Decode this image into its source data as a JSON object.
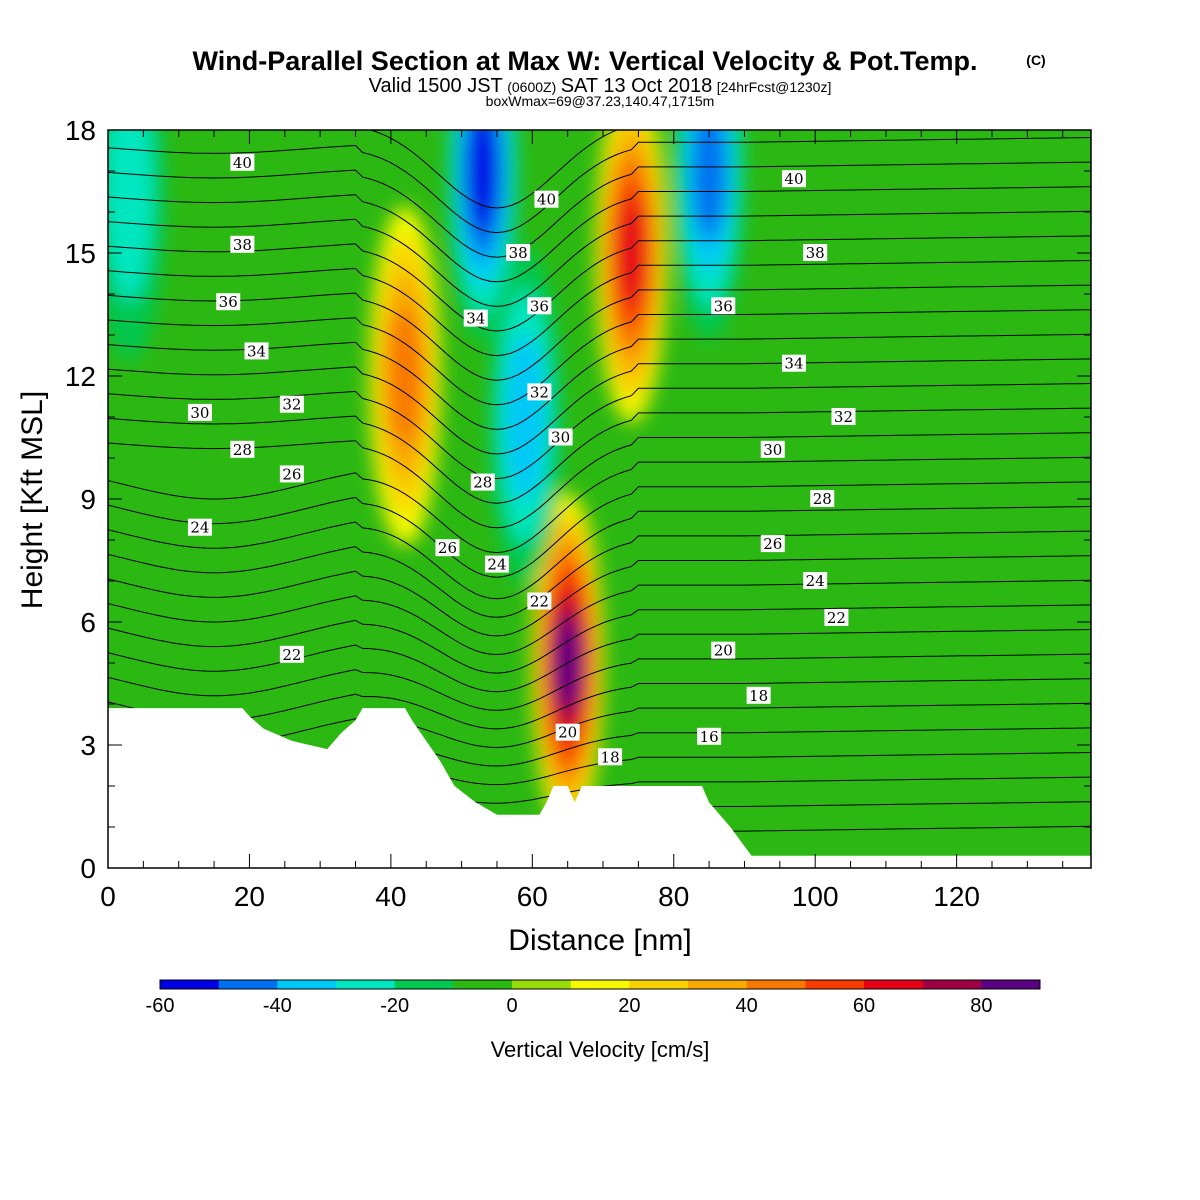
{
  "header": {
    "title": "Wind-Parallel Section at Max W: Vertical Velocity & Pot.Temp.",
    "title_mark": "(C)",
    "valid_prefix": "Valid 1500 JST",
    "valid_utc": "(0600Z)",
    "valid_date": "SAT 13 Oct 2018",
    "forecast": "[24hrFcst@1230z]",
    "box_info": "boxWmax=69@37.23,140.47,1715m"
  },
  "chart_data": {
    "type": "heatmap",
    "xlabel": "Distance [nm]",
    "ylabel": "Height [Kft MSL]",
    "xlim": [
      0,
      139
    ],
    "ylim": [
      0,
      18
    ],
    "x_ticks": [
      0,
      20,
      40,
      60,
      80,
      100,
      120
    ],
    "y_ticks": [
      0,
      3,
      6,
      9,
      12,
      15,
      18
    ],
    "colorbar": {
      "label": "Vertical Velocity [cm/s]",
      "min": -60,
      "max": 90,
      "step": 10,
      "tick_values": [
        -60,
        -40,
        -20,
        0,
        20,
        40,
        60,
        80
      ],
      "colors": [
        "#0000e6",
        "#0070f0",
        "#00c8f8",
        "#00e6c0",
        "#00c850",
        "#2cb812",
        "#96dc0a",
        "#f8f800",
        "#f8d200",
        "#f8aa00",
        "#f87800",
        "#f83c00",
        "#e60014",
        "#a00046",
        "#5a0082"
      ]
    },
    "max_w": {
      "value": 69,
      "lat": 37.23,
      "lon": 140.47,
      "height_m": 1715
    },
    "terrain": [
      [
        0,
        3.9
      ],
      [
        10,
        3.9
      ],
      [
        19,
        3.9
      ],
      [
        20,
        3.7
      ],
      [
        22,
        3.4
      ],
      [
        26,
        3.1
      ],
      [
        31,
        2.9
      ],
      [
        33,
        3.3
      ],
      [
        35,
        3.6
      ],
      [
        36,
        3.9
      ],
      [
        42,
        3.9
      ],
      [
        43,
        3.6
      ],
      [
        45,
        3.1
      ],
      [
        47,
        2.6
      ],
      [
        49,
        2.0
      ],
      [
        52,
        1.6
      ],
      [
        55,
        1.3
      ],
      [
        61,
        1.3
      ],
      [
        62,
        1.6
      ],
      [
        63,
        2.0
      ],
      [
        65,
        2.0
      ],
      [
        66,
        1.6
      ],
      [
        67,
        2.0
      ],
      [
        84,
        2.0
      ],
      [
        85,
        1.6
      ],
      [
        88,
        1.0
      ],
      [
        91,
        0.3
      ],
      [
        139,
        0.3
      ]
    ],
    "updrafts": [
      {
        "x": 65,
        "y": 5.0,
        "w": 80
      },
      {
        "x": 74,
        "y": 15.0,
        "w": 65
      },
      {
        "x": 42,
        "y": 12.0,
        "w": 40
      }
    ],
    "downdrafts": [
      {
        "x": 53,
        "y": 17.0,
        "w": -50
      },
      {
        "x": 85,
        "y": 17.0,
        "w": -45
      },
      {
        "x": 59,
        "y": 11.0,
        "w": -30
      },
      {
        "x": 3,
        "y": 16.5,
        "w": -25
      }
    ],
    "theta_contours": {
      "label": "Pot.Temp. (C)",
      "labels": [
        {
          "v": "40",
          "x": 19,
          "y": 17.2
        },
        {
          "v": "38",
          "x": 19,
          "y": 15.2
        },
        {
          "v": "36",
          "x": 17,
          "y": 13.8
        },
        {
          "v": "34",
          "x": 21,
          "y": 12.6
        },
        {
          "v": "32",
          "x": 26,
          "y": 11.3
        },
        {
          "v": "30",
          "x": 13,
          "y": 11.1
        },
        {
          "v": "28",
          "x": 19,
          "y": 10.2
        },
        {
          "v": "26",
          "x": 26,
          "y": 9.6
        },
        {
          "v": "24",
          "x": 13,
          "y": 8.3
        },
        {
          "v": "22",
          "x": 26,
          "y": 5.2
        },
        {
          "v": "34",
          "x": 52,
          "y": 13.4
        },
        {
          "v": "36",
          "x": 61,
          "y": 13.7
        },
        {
          "v": "38",
          "x": 58,
          "y": 15.0
        },
        {
          "v": "40",
          "x": 62,
          "y": 16.3
        },
        {
          "v": "32",
          "x": 61,
          "y": 11.6
        },
        {
          "v": "30",
          "x": 64,
          "y": 10.5
        },
        {
          "v": "28",
          "x": 53,
          "y": 9.4
        },
        {
          "v": "26",
          "x": 48,
          "y": 7.8
        },
        {
          "v": "24",
          "x": 55,
          "y": 7.4
        },
        {
          "v": "22",
          "x": 61,
          "y": 6.5
        },
        {
          "v": "20",
          "x": 65,
          "y": 3.3
        },
        {
          "v": "18",
          "x": 71,
          "y": 2.7
        },
        {
          "v": "40",
          "x": 97,
          "y": 16.8
        },
        {
          "v": "38",
          "x": 100,
          "y": 15.0
        },
        {
          "v": "36",
          "x": 87,
          "y": 13.7
        },
        {
          "v": "34",
          "x": 97,
          "y": 12.3
        },
        {
          "v": "32",
          "x": 104,
          "y": 11.0
        },
        {
          "v": "30",
          "x": 94,
          "y": 10.2
        },
        {
          "v": "28",
          "x": 101,
          "y": 9.0
        },
        {
          "v": "26",
          "x": 94,
          "y": 7.9
        },
        {
          "v": "24",
          "x": 100,
          "y": 7.0
        },
        {
          "v": "22",
          "x": 103,
          "y": 6.1
        },
        {
          "v": "20",
          "x": 87,
          "y": 5.3
        },
        {
          "v": "18",
          "x": 92,
          "y": 4.2
        },
        {
          "v": "16",
          "x": 85,
          "y": 3.2
        }
      ]
    }
  }
}
